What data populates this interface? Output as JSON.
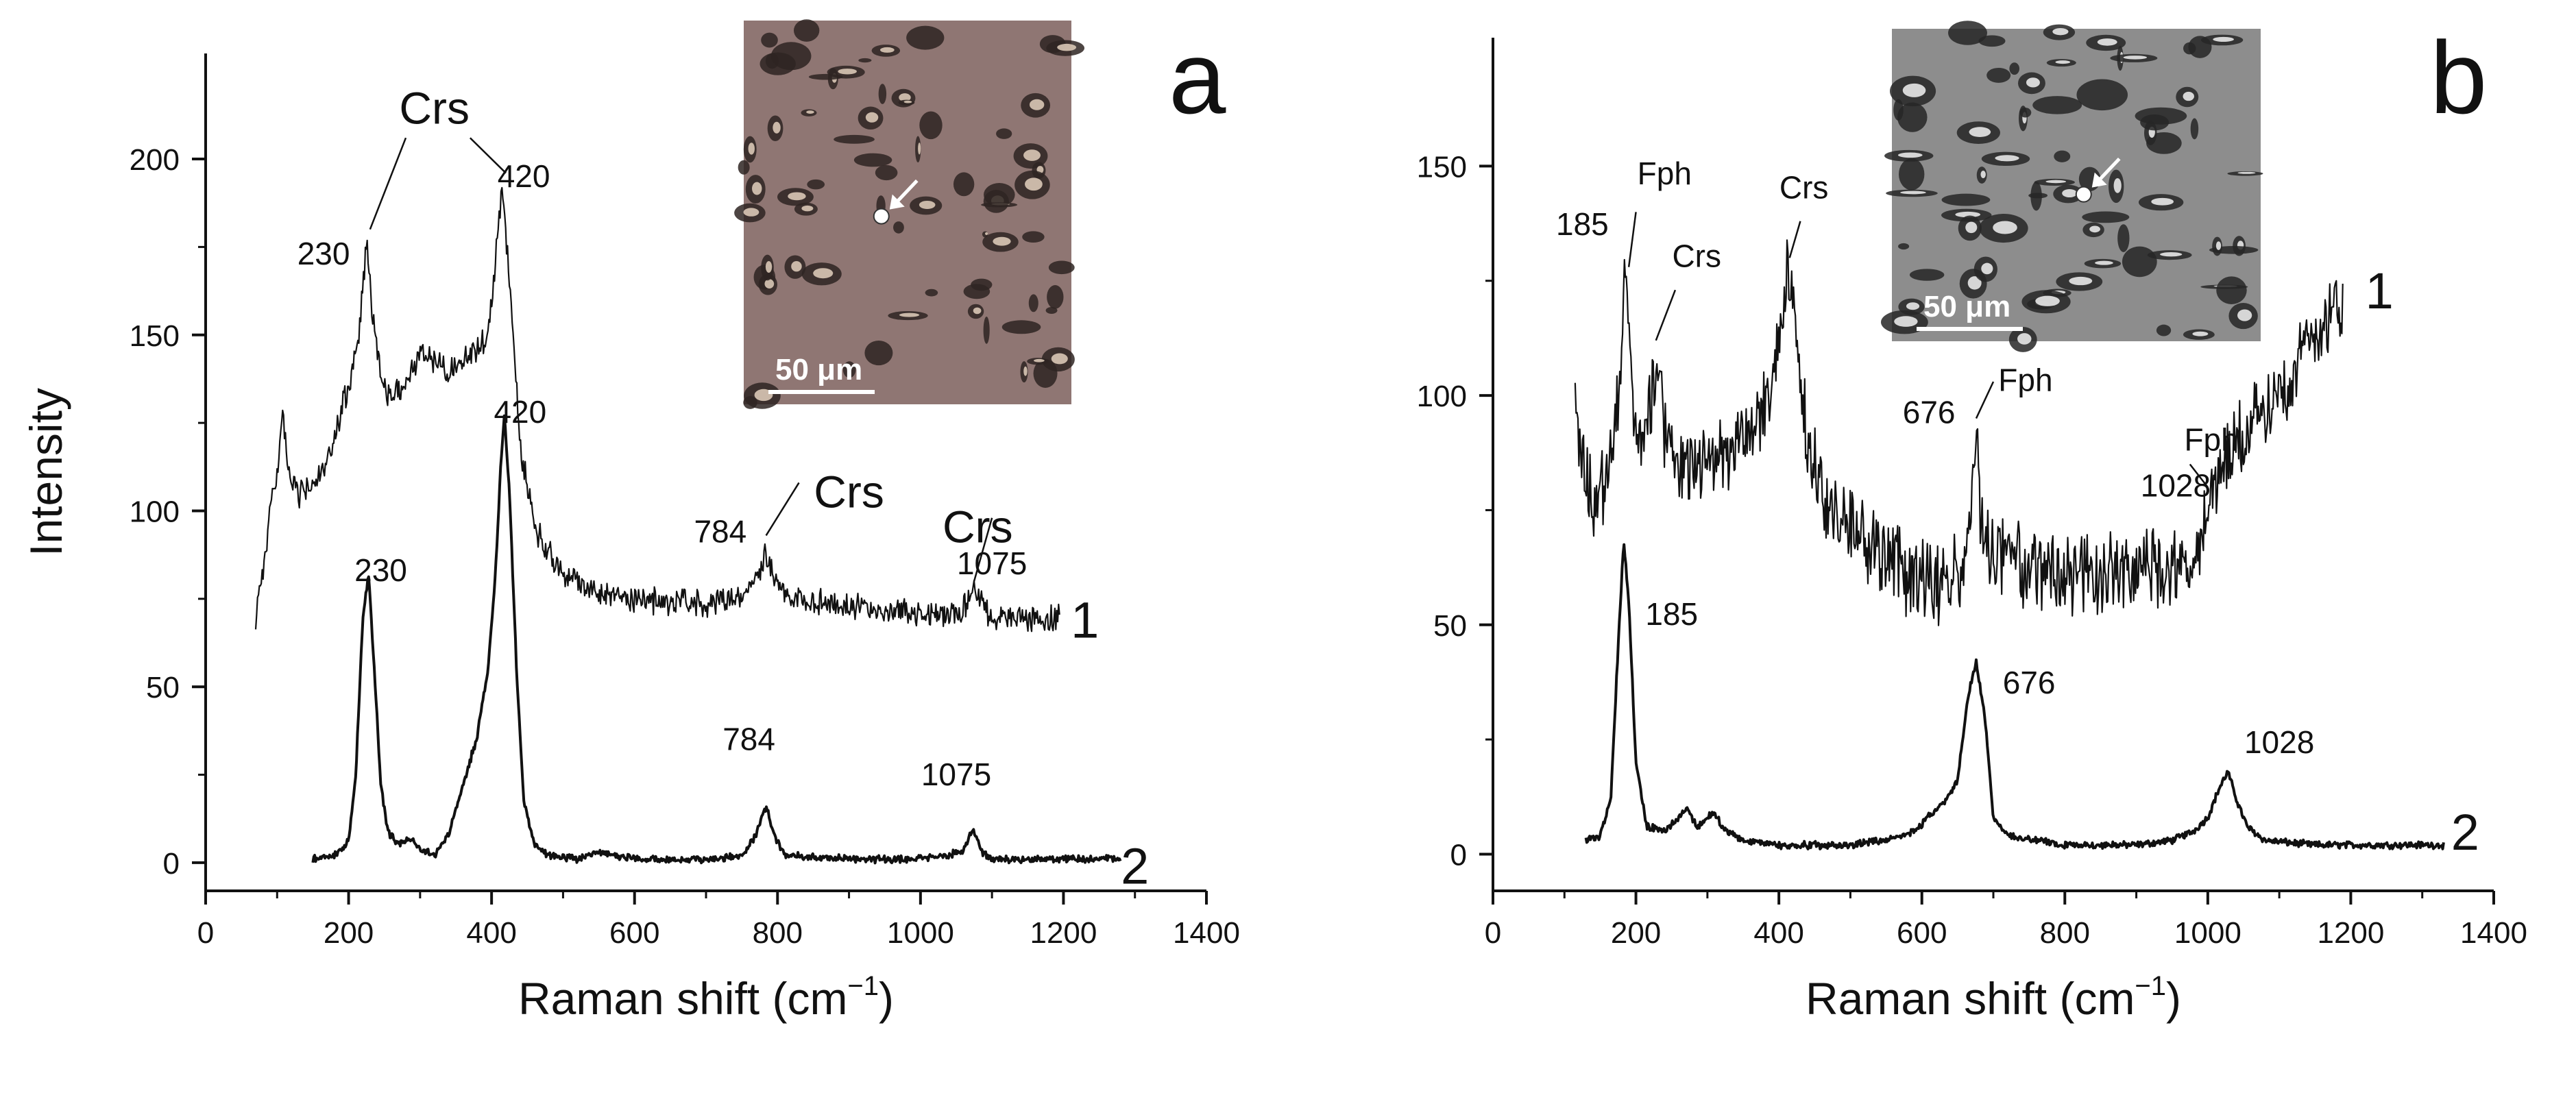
{
  "chart_data": [
    {
      "panel": "a",
      "type": "line",
      "xlabel_main": "Raman shift (cm",
      "xlabel_sup": "−1",
      "xlabel_close": ")",
      "ylabel": "Intensity",
      "xlim": [
        0,
        1400
      ],
      "ylim": [
        -8,
        230
      ],
      "xticks": [
        0,
        200,
        400,
        600,
        800,
        1000,
        1200,
        1400
      ],
      "yticks": [
        0,
        50,
        100,
        150,
        200
      ],
      "inset": {
        "scale_bar": "50 μm",
        "tone": "brown"
      },
      "series": [
        {
          "name": "1",
          "noise": 3,
          "points": [
            [
              70,
              70
            ],
            [
              90,
              98
            ],
            [
              100,
              112
            ],
            [
              108,
              126
            ],
            [
              115,
              112
            ],
            [
              130,
              104
            ],
            [
              150,
              108
            ],
            [
              170,
              112
            ],
            [
              185,
              125
            ],
            [
              200,
              135
            ],
            [
              215,
              150
            ],
            [
              225,
              175
            ],
            [
              232,
              160
            ],
            [
              245,
              138
            ],
            [
              260,
              132
            ],
            [
              280,
              136
            ],
            [
              300,
              145
            ],
            [
              320,
              143
            ],
            [
              340,
              140
            ],
            [
              360,
              143
            ],
            [
              380,
              146
            ],
            [
              395,
              150
            ],
            [
              405,
              170
            ],
            [
              415,
              193
            ],
            [
              425,
              165
            ],
            [
              440,
              118
            ],
            [
              460,
              96
            ],
            [
              480,
              88
            ],
            [
              500,
              82
            ],
            [
              550,
              77
            ],
            [
              600,
              75
            ],
            [
              650,
              74
            ],
            [
              700,
              74
            ],
            [
              740,
              75
            ],
            [
              760,
              78
            ],
            [
              775,
              83
            ],
            [
              784,
              88
            ],
            [
              795,
              82
            ],
            [
              810,
              76
            ],
            [
              850,
              74
            ],
            [
              900,
              73
            ],
            [
              950,
              72
            ],
            [
              1000,
              71
            ],
            [
              1040,
              70
            ],
            [
              1060,
              72
            ],
            [
              1070,
              76
            ],
            [
              1075,
              78
            ],
            [
              1082,
              74
            ],
            [
              1100,
              70
            ],
            [
              1150,
              69
            ],
            [
              1195,
              69
            ]
          ]
        },
        {
          "name": "2",
          "noise": 0.8,
          "points": [
            [
              150,
              1
            ],
            [
              180,
              2
            ],
            [
              200,
              6
            ],
            [
              210,
              25
            ],
            [
              220,
              70
            ],
            [
              228,
              82
            ],
            [
              236,
              55
            ],
            [
              245,
              22
            ],
            [
              255,
              9
            ],
            [
              270,
              5
            ],
            [
              285,
              7
            ],
            [
              300,
              4
            ],
            [
              320,
              2
            ],
            [
              340,
              8
            ],
            [
              360,
              22
            ],
            [
              380,
              36
            ],
            [
              395,
              55
            ],
            [
              405,
              80
            ],
            [
              412,
              110
            ],
            [
              418,
              128
            ],
            [
              425,
              105
            ],
            [
              435,
              55
            ],
            [
              445,
              18
            ],
            [
              460,
              5
            ],
            [
              480,
              2
            ],
            [
              520,
              1
            ],
            [
              550,
              3
            ],
            [
              600,
              1
            ],
            [
              700,
              1
            ],
            [
              750,
              2
            ],
            [
              770,
              8
            ],
            [
              784,
              16
            ],
            [
              795,
              8
            ],
            [
              810,
              2
            ],
            [
              900,
              1
            ],
            [
              1000,
              1
            ],
            [
              1060,
              3
            ],
            [
              1070,
              8
            ],
            [
              1075,
              9
            ],
            [
              1085,
              3
            ],
            [
              1100,
              1
            ],
            [
              1200,
              1
            ],
            [
              1280,
              1
            ]
          ]
        }
      ],
      "annotations": [
        {
          "text": "Crs",
          "x": 320,
          "y": 210,
          "size": "big"
        },
        {
          "text": "230",
          "x": 165,
          "y": 170,
          "size": "small"
        },
        {
          "text": "420",
          "x": 445,
          "y": 192,
          "size": "small"
        },
        {
          "text": "420",
          "x": 440,
          "y": 125,
          "size": "small"
        },
        {
          "text": "230",
          "x": 245,
          "y": 80,
          "size": "small"
        },
        {
          "text": "784",
          "x": 720,
          "y": 91,
          "size": "small"
        },
        {
          "text": "Crs",
          "x": 900,
          "y": 101,
          "size": "big"
        },
        {
          "text": "Crs",
          "x": 1080,
          "y": 91,
          "size": "big"
        },
        {
          "text": "1075",
          "x": 1100,
          "y": 82,
          "size": "small"
        },
        {
          "text": "784",
          "x": 760,
          "y": 32,
          "size": "small"
        },
        {
          "text": "1075",
          "x": 1050,
          "y": 22,
          "size": "small"
        },
        {
          "text": "1",
          "x": 1230,
          "y": 64,
          "size": "id"
        },
        {
          "text": "2",
          "x": 1300,
          "y": -6,
          "size": "id"
        }
      ],
      "leader_lines": [
        [
          [
            230,
            180
          ],
          [
            280,
            206
          ]
        ],
        [
          [
            420,
            196
          ],
          [
            370,
            206
          ]
        ],
        [
          [
            784,
            93
          ],
          [
            830,
            108
          ]
        ],
        [
          [
            1075,
            80
          ],
          [
            1100,
            98
          ]
        ]
      ]
    },
    {
      "panel": "b",
      "type": "line",
      "xlabel_main": "Raman shift (cm",
      "xlabel_sup": "−1",
      "xlabel_close": ")",
      "ylabel": "",
      "xlim": [
        0,
        1400
      ],
      "ylim": [
        -8,
        178
      ],
      "xticks": [
        0,
        200,
        400,
        600,
        800,
        1000,
        1200,
        1400
      ],
      "yticks": [
        0,
        50,
        100,
        150
      ],
      "inset": {
        "scale_bar": "50 μm",
        "tone": "grey"
      },
      "series": [
        {
          "name": "1",
          "noise": 7,
          "points": [
            [
              115,
              96
            ],
            [
              125,
              85
            ],
            [
              140,
              78
            ],
            [
              160,
              80
            ],
            [
              175,
              100
            ],
            [
              185,
              128
            ],
            [
              192,
              108
            ],
            [
              200,
              88
            ],
            [
              215,
              92
            ],
            [
              228,
              108
            ],
            [
              240,
              92
            ],
            [
              260,
              86
            ],
            [
              300,
              86
            ],
            [
              330,
              88
            ],
            [
              360,
              92
            ],
            [
              390,
              100
            ],
            [
              405,
              120
            ],
            [
              415,
              128
            ],
            [
              425,
              110
            ],
            [
              440,
              88
            ],
            [
              470,
              75
            ],
            [
              520,
              68
            ],
            [
              570,
              62
            ],
            [
              620,
              58
            ],
            [
              650,
              60
            ],
            [
              665,
              68
            ],
            [
              676,
              90
            ],
            [
              685,
              70
            ],
            [
              700,
              65
            ],
            [
              750,
              62
            ],
            [
              800,
              60
            ],
            [
              850,
              60
            ],
            [
              900,
              62
            ],
            [
              950,
              62
            ],
            [
              990,
              66
            ],
            [
              1000,
              75
            ],
            [
              1010,
              82
            ],
            [
              1028,
              85
            ],
            [
              1050,
              92
            ],
            [
              1080,
              96
            ],
            [
              1110,
              104
            ],
            [
              1150,
              114
            ],
            [
              1190,
              122
            ]
          ]
        },
        {
          "name": "2",
          "noise": 0.6,
          "points": [
            [
              130,
              3
            ],
            [
              150,
              4
            ],
            [
              165,
              12
            ],
            [
              175,
              45
            ],
            [
              183,
              68
            ],
            [
              190,
              55
            ],
            [
              200,
              20
            ],
            [
              215,
              6
            ],
            [
              240,
              5
            ],
            [
              260,
              8
            ],
            [
              272,
              10
            ],
            [
              285,
              6
            ],
            [
              300,
              8
            ],
            [
              310,
              9
            ],
            [
              325,
              5
            ],
            [
              350,
              3
            ],
            [
              400,
              2
            ],
            [
              450,
              2
            ],
            [
              500,
              2
            ],
            [
              550,
              3
            ],
            [
              590,
              5
            ],
            [
              615,
              9
            ],
            [
              635,
              12
            ],
            [
              650,
              16
            ],
            [
              665,
              35
            ],
            [
              676,
              42
            ],
            [
              688,
              30
            ],
            [
              700,
              8
            ],
            [
              720,
              4
            ],
            [
              800,
              2
            ],
            [
              900,
              2
            ],
            [
              950,
              3
            ],
            [
              980,
              5
            ],
            [
              1000,
              8
            ],
            [
              1015,
              14
            ],
            [
              1028,
              18
            ],
            [
              1040,
              12
            ],
            [
              1055,
              6
            ],
            [
              1080,
              3
            ],
            [
              1150,
              2
            ],
            [
              1250,
              2
            ],
            [
              1330,
              2
            ]
          ]
        }
      ],
      "annotations": [
        {
          "text": "185",
          "x": 125,
          "y": 135,
          "size": "small"
        },
        {
          "text": "Fph",
          "x": 240,
          "y": 146,
          "size": "small"
        },
        {
          "text": "Crs",
          "x": 285,
          "y": 128,
          "size": "small"
        },
        {
          "text": "Crs",
          "x": 435,
          "y": 143,
          "size": "small"
        },
        {
          "text": "676",
          "x": 610,
          "y": 94,
          "size": "small"
        },
        {
          "text": "Fph",
          "x": 745,
          "y": 101,
          "size": "small"
        },
        {
          "text": "Fph",
          "x": 1005,
          "y": 88,
          "size": "small"
        },
        {
          "text": "1028",
          "x": 955,
          "y": 78,
          "size": "small"
        },
        {
          "text": "185",
          "x": 250,
          "y": 50,
          "size": "small"
        },
        {
          "text": "676",
          "x": 750,
          "y": 35,
          "size": "small"
        },
        {
          "text": "1028",
          "x": 1100,
          "y": 22,
          "size": "small"
        },
        {
          "text": "1",
          "x": 1240,
          "y": 119,
          "size": "id"
        },
        {
          "text": "2",
          "x": 1360,
          "y": 1,
          "size": "id"
        }
      ],
      "leader_lines": [
        [
          [
            190,
            128
          ],
          [
            200,
            140
          ]
        ],
        [
          [
            228,
            112
          ],
          [
            255,
            123
          ]
        ],
        [
          [
            415,
            130
          ],
          [
            430,
            138
          ]
        ],
        [
          [
            676,
            95
          ],
          [
            700,
            103
          ]
        ],
        [
          [
            1000,
            80
          ],
          [
            975,
            85
          ]
        ]
      ]
    }
  ]
}
